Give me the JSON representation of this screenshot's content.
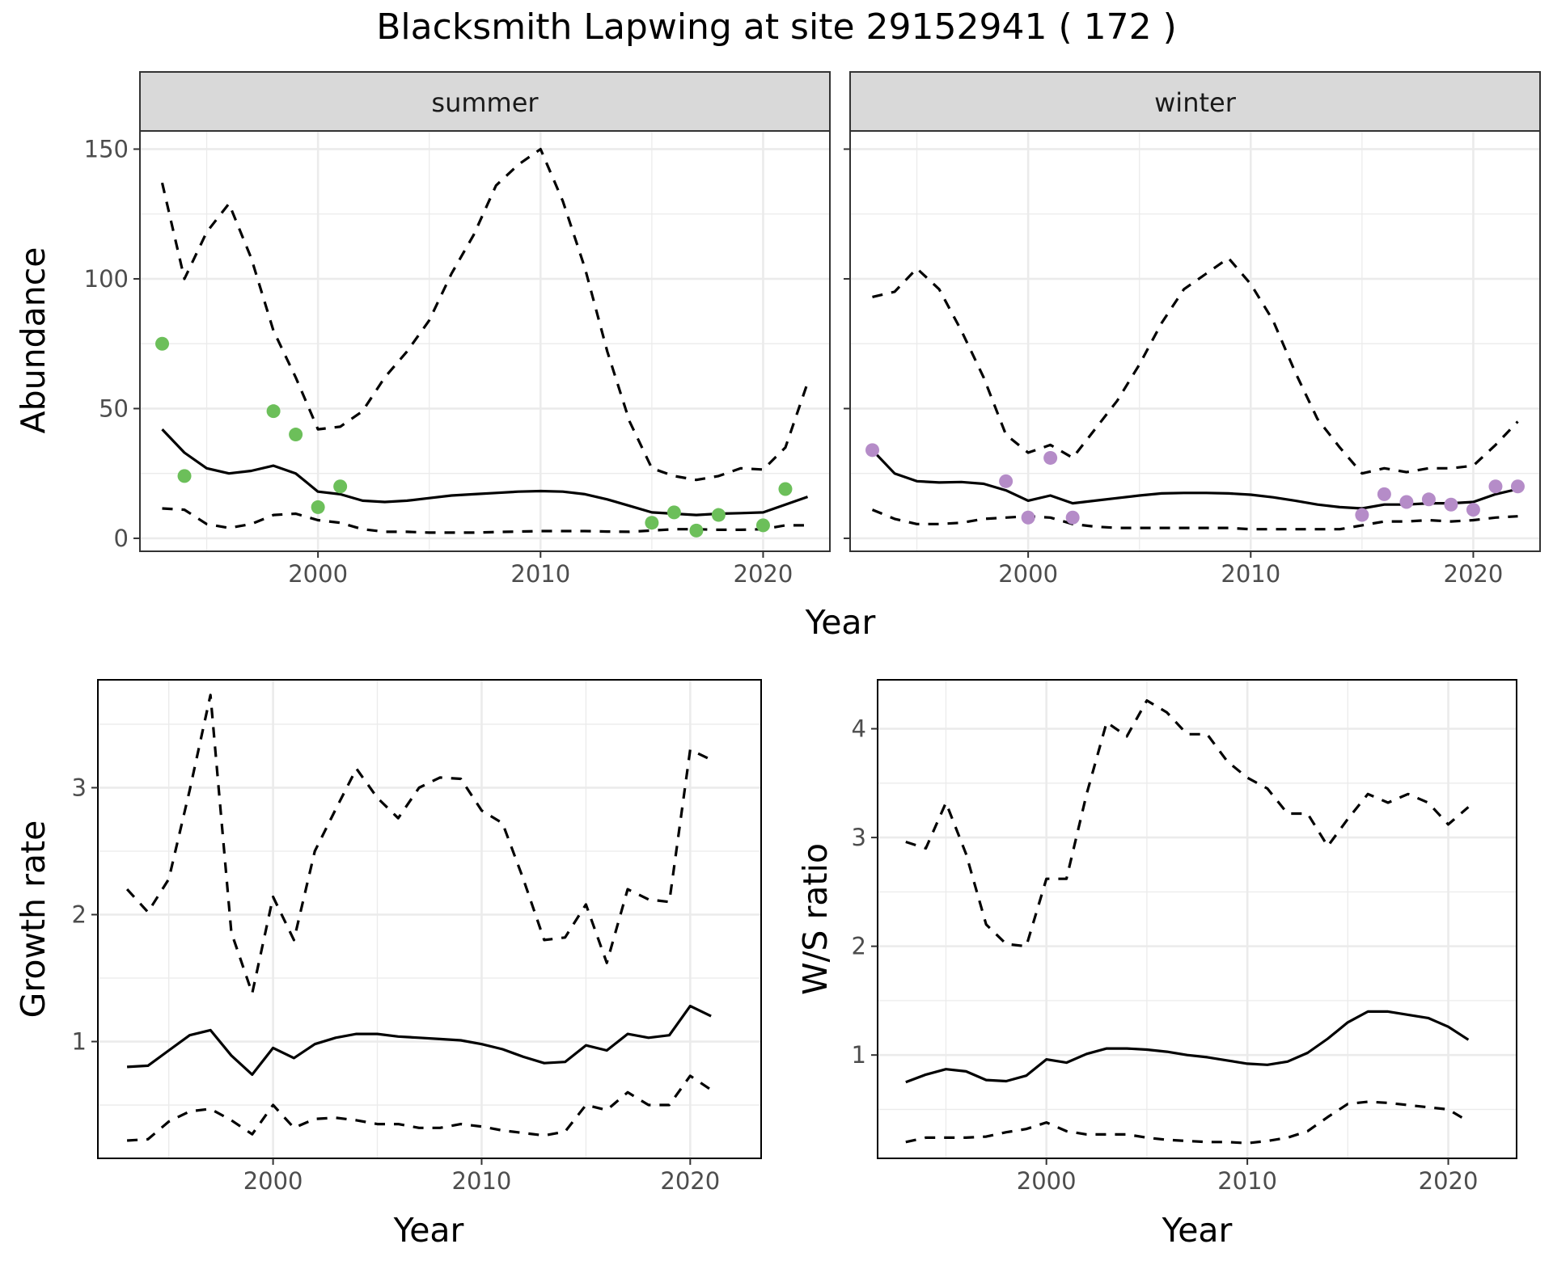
{
  "title": "Blacksmith Lapwing at site 29152941 ( 172 )",
  "colors": {
    "summer_points": "#6cbf5a",
    "winter_points": "#b58cc8",
    "line": "#000000",
    "grid": "#ebebeb",
    "strip_bg": "#d9d9d9"
  },
  "chart_data": [
    {
      "id": "abundance",
      "type": "line",
      "panels": [
        "summer",
        "winter"
      ],
      "xlabel": "Year",
      "ylabel": "Abundance",
      "xlim": [
        1992,
        2023
      ],
      "ylim": [
        -5,
        157
      ],
      "xticks": [
        2000,
        2010,
        2020
      ],
      "yticks": [
        0,
        50,
        100,
        150
      ],
      "grid": true,
      "facets": [
        {
          "name": "summer",
          "x": [
            1993,
            1994,
            1995,
            1996,
            1997,
            1998,
            1999,
            2000,
            2001,
            2002,
            2003,
            2004,
            2005,
            2006,
            2007,
            2008,
            2009,
            2010,
            2011,
            2012,
            2013,
            2014,
            2015,
            2016,
            2017,
            2018,
            2019,
            2020,
            2021,
            2022
          ],
          "mean": [
            42,
            33,
            27,
            25,
            26,
            28,
            25,
            18,
            17,
            14.5,
            14,
            14.5,
            15.5,
            16.5,
            17,
            17.5,
            18,
            18.2,
            18,
            17,
            15,
            12.5,
            10,
            9.5,
            9,
            9.5,
            9.7,
            10,
            13,
            16
          ],
          "upper": [
            137,
            100,
            118,
            129,
            108,
            80,
            62,
            42,
            43,
            49,
            62,
            72,
            84,
            102,
            117,
            136,
            144,
            150,
            130,
            104,
            72,
            45,
            27,
            24,
            22.5,
            24,
            27,
            26.5,
            35,
            60
          ],
          "lower": [
            11.5,
            11,
            5.5,
            4,
            5.5,
            9,
            9.5,
            7,
            6,
            3.5,
            2.5,
            2.5,
            2.2,
            2.2,
            2.2,
            2.4,
            2.6,
            2.8,
            2.8,
            2.8,
            2.6,
            2.5,
            3,
            3.5,
            3.5,
            3.3,
            3.3,
            3.5,
            5,
            5
          ],
          "points_x": [
            1993,
            1994,
            1998,
            1999,
            2000,
            2001,
            2015,
            2016,
            2017,
            2018,
            2020,
            2021
          ],
          "points_y": [
            75,
            24,
            49,
            40,
            12,
            20,
            6,
            10,
            3,
            9,
            5,
            19
          ]
        },
        {
          "name": "winter",
          "x": [
            1993,
            1994,
            1995,
            1996,
            1997,
            1998,
            1999,
            2000,
            2001,
            2002,
            2003,
            2004,
            2005,
            2006,
            2007,
            2008,
            2009,
            2010,
            2011,
            2012,
            2013,
            2014,
            2015,
            2016,
            2017,
            2018,
            2019,
            2020,
            2021,
            2022
          ],
          "mean": [
            34,
            25,
            22,
            21.5,
            21.7,
            21,
            18.5,
            14.5,
            16.5,
            13.5,
            14.5,
            15.5,
            16.5,
            17.3,
            17.5,
            17.5,
            17.3,
            16.8,
            15.8,
            14.5,
            13,
            12,
            11.5,
            13,
            13,
            13.5,
            13.5,
            14,
            17,
            19
          ],
          "upper": [
            93,
            95,
            104,
            96,
            80,
            62,
            40,
            33,
            36,
            31,
            42,
            53,
            67,
            83,
            96,
            102,
            108,
            98,
            84,
            64,
            46,
            35,
            25,
            27,
            25.5,
            27,
            27,
            28,
            36,
            45
          ],
          "lower": [
            11,
            7.5,
            5.5,
            5.5,
            6,
            7.5,
            8,
            8.5,
            8,
            5.5,
            4.5,
            4,
            4,
            4,
            4,
            4,
            4,
            3.5,
            3.5,
            3.5,
            3.5,
            3.5,
            5,
            6.5,
            6.5,
            7,
            6.5,
            7,
            8,
            8.5
          ],
          "points_x": [
            1993,
            1999,
            2000,
            2001,
            2002,
            2015,
            2016,
            2017,
            2018,
            2019,
            2020,
            2021,
            2022
          ],
          "points_y": [
            34,
            22,
            8,
            31,
            8,
            9,
            17,
            14,
            15,
            13,
            11,
            20,
            20
          ]
        }
      ]
    },
    {
      "id": "growth",
      "type": "line",
      "xlabel": "Year",
      "ylabel": "Growth rate",
      "xlim": [
        1991.6,
        2023.4
      ],
      "ylim": [
        0.08,
        3.85
      ],
      "xticks": [
        2000,
        2010,
        2020
      ],
      "yticks": [
        1,
        2,
        3
      ],
      "grid": true,
      "x": [
        1993,
        1994,
        1995,
        1996,
        1997,
        1998,
        1999,
        2000,
        2001,
        2002,
        2003,
        2004,
        2005,
        2006,
        2007,
        2008,
        2009,
        2010,
        2011,
        2012,
        2013,
        2014,
        2015,
        2016,
        2017,
        2018,
        2019,
        2020,
        2021
      ],
      "mean": [
        0.8,
        0.81,
        0.93,
        1.05,
        1.09,
        0.89,
        0.74,
        0.95,
        0.87,
        0.98,
        1.03,
        1.06,
        1.06,
        1.04,
        1.03,
        1.02,
        1.01,
        0.98,
        0.94,
        0.88,
        0.83,
        0.84,
        0.97,
        0.93,
        1.06,
        1.03,
        1.05,
        1.28,
        1.2
      ],
      "upper": [
        2.2,
        2.02,
        2.28,
        2.98,
        3.73,
        1.86,
        1.38,
        2.14,
        1.8,
        2.5,
        2.83,
        3.15,
        2.92,
        2.76,
        3,
        3.08,
        3.07,
        2.82,
        2.72,
        2.28,
        1.8,
        1.82,
        2.08,
        1.62,
        2.2,
        2.12,
        2.1,
        3.3,
        3.22
      ],
      "lower": [
        0.22,
        0.23,
        0.37,
        0.45,
        0.47,
        0.38,
        0.27,
        0.5,
        0.32,
        0.39,
        0.4,
        0.38,
        0.35,
        0.35,
        0.32,
        0.32,
        0.35,
        0.33,
        0.3,
        0.28,
        0.26,
        0.29,
        0.5,
        0.46,
        0.6,
        0.5,
        0.5,
        0.73,
        0.62
      ]
    },
    {
      "id": "ws_ratio",
      "type": "line",
      "xlabel": "Year",
      "ylabel": "W/S ratio",
      "xlim": [
        1991.6,
        2023.4
      ],
      "ylim": [
        0.05,
        4.45
      ],
      "xticks": [
        2000,
        2010,
        2020
      ],
      "yticks": [
        1,
        2,
        3,
        4
      ],
      "grid": true,
      "x": [
        1993,
        1994,
        1995,
        1996,
        1997,
        1998,
        1999,
        2000,
        2001,
        2002,
        2003,
        2004,
        2005,
        2006,
        2007,
        2008,
        2009,
        2010,
        2011,
        2012,
        2013,
        2014,
        2015,
        2016,
        2017,
        2018,
        2019,
        2020,
        2021
      ],
      "mean": [
        0.75,
        0.82,
        0.87,
        0.85,
        0.77,
        0.76,
        0.81,
        0.96,
        0.93,
        1.01,
        1.06,
        1.06,
        1.05,
        1.03,
        1,
        0.98,
        0.95,
        0.92,
        0.91,
        0.94,
        1.02,
        1.15,
        1.3,
        1.4,
        1.4,
        1.37,
        1.34,
        1.26,
        1.14
      ],
      "upper": [
        2.96,
        2.9,
        3.32,
        2.85,
        2.2,
        2.02,
        2,
        2.62,
        2.62,
        3.4,
        4.06,
        3.93,
        4.26,
        4.15,
        3.95,
        3.95,
        3.7,
        3.55,
        3.45,
        3.22,
        3.22,
        2.92,
        3.17,
        3.4,
        3.32,
        3.4,
        3.32,
        3.12,
        3.28
      ],
      "lower": [
        0.2,
        0.24,
        0.24,
        0.24,
        0.25,
        0.29,
        0.32,
        0.38,
        0.3,
        0.27,
        0.27,
        0.27,
        0.24,
        0.22,
        0.21,
        0.2,
        0.2,
        0.19,
        0.21,
        0.24,
        0.3,
        0.43,
        0.55,
        0.57,
        0.56,
        0.54,
        0.52,
        0.5,
        0.39
      ]
    }
  ]
}
